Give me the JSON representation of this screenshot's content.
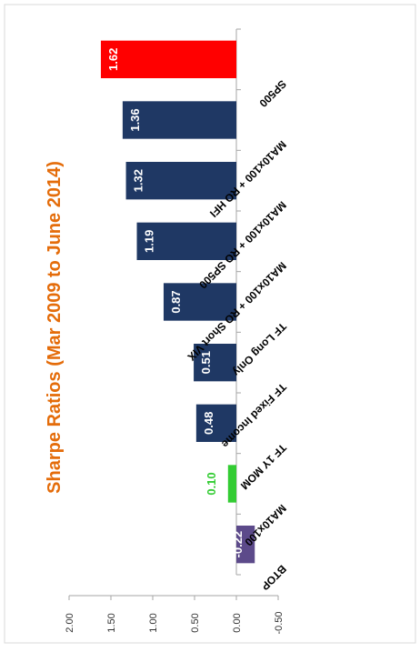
{
  "chart_data": {
    "type": "bar",
    "title": "Sharpe  Ratios (Mar 2009 to June 2014)",
    "categories": [
      "SP500",
      "MA10x100 + RO HFI",
      "MA10x100 + RO SP500",
      "MA10x100 + RO Short VIX",
      "TF Long Only",
      "TF Fixed Income",
      "TF 1Y MOM",
      "MA10x100",
      "BTOP"
    ],
    "values": [
      1.62,
      1.36,
      1.32,
      1.19,
      0.87,
      0.51,
      0.48,
      0.1,
      -0.22
    ],
    "value_labels": [
      "1.62",
      "1.36",
      "1.32",
      "1.19",
      "0.87",
      "0.51",
      "0.48",
      "0.10",
      "-0.22"
    ],
    "bar_colors": [
      "#ff0000",
      "#1f3864",
      "#1f3864",
      "#1f3864",
      "#1f3864",
      "#1f3864",
      "#1f3864",
      "#33cc33",
      "#5c4a8a"
    ],
    "value_label_colors": [
      "#ffffff",
      "#ffffff",
      "#ffffff",
      "#ffffff",
      "#ffffff",
      "#ffffff",
      "#ffffff",
      "#33cc33",
      "#ffffff"
    ],
    "ylim": [
      -0.5,
      2.0
    ],
    "y_ticks": [
      "2.00",
      "1.50",
      "1.00",
      "0.50",
      "0.00",
      "-0.50"
    ],
    "orientation": "rotated 90 degrees clockwise",
    "title_color": "#e46c0a",
    "grid": false,
    "legend": "none"
  }
}
